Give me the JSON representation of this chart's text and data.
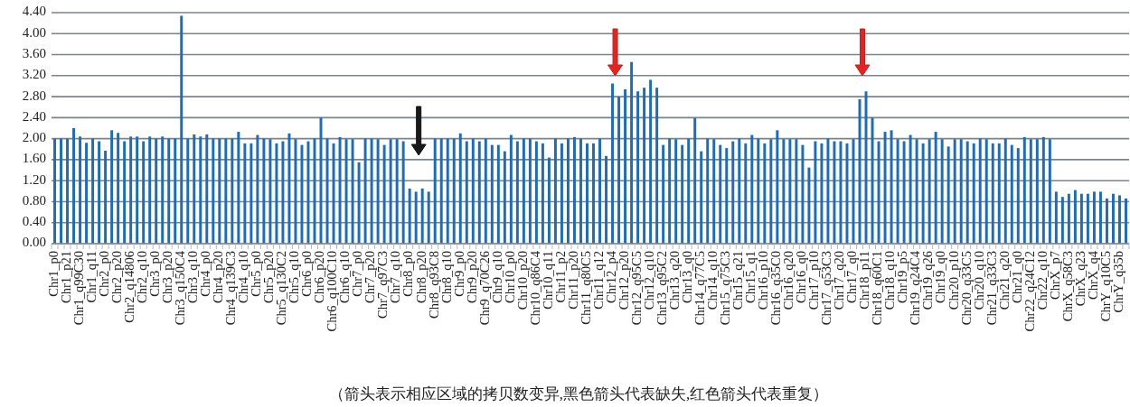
{
  "chart_data": {
    "type": "bar",
    "categories": [
      "Chr1_p0",
      null,
      "Chr1_p21",
      null,
      "Chr1_q99C30",
      null,
      "Chr1_q11",
      null,
      "Chr2_p0",
      null,
      "Chr2_p20",
      null,
      "Chr2_q14806",
      null,
      "Chr2_q10",
      null,
      "Chr3_p0",
      null,
      "Chr3_p20",
      null,
      "Chr3_q150C4",
      null,
      "Chr3_q10",
      null,
      "Chr4_p0",
      null,
      "Chr4_p20",
      null,
      "Chr4_q139C3",
      null,
      "Chr4_q10",
      null,
      "Chr5_p0",
      null,
      "Chr5_p20",
      null,
      "Chr5_q130C2",
      null,
      "Chr5_q10",
      null,
      "Chr6_p0",
      null,
      "Chr6_p20",
      null,
      "Chr6_q100C10",
      null,
      "Chr6_q10",
      null,
      "Chr7_p0",
      null,
      "Chr7_p20",
      null,
      "Chr7_q97C3",
      null,
      "Chr7_q10",
      null,
      "Chr8_p0",
      null,
      "Chr8_p20",
      null,
      "Chr8_q93C8",
      null,
      "Chr8_q10",
      null,
      "Chr9_p0",
      null,
      "Chr9_p20",
      null,
      "Chr9_q70C26",
      null,
      "Chr9_q10",
      null,
      "Chr10_p0",
      null,
      "Chr10_p20",
      null,
      "Chr10_q86C4",
      null,
      "Chr10_q11",
      null,
      "Chr11_p2",
      null,
      "Chr11_p20",
      null,
      "Chr11_q80C5",
      null,
      "Chr11_q12",
      null,
      "Chr12_p4",
      null,
      "Chr12_p20",
      null,
      "Chr12_q95C5",
      null,
      "Chr12_q10",
      null,
      "Chr13_q95C2",
      null,
      "Chr13_q20",
      null,
      "Chr13_q0",
      null,
      "Chr14_q77C5",
      null,
      "Chr14_q10",
      null,
      "Chr15_q75C3",
      null,
      "Chr15_q21",
      null,
      "Chr15_q1",
      null,
      "Chr16_p10",
      null,
      "Chr16_q35C0",
      null,
      "Chr16_q20",
      null,
      "Chr16_q0",
      null,
      "Chr17_p10",
      null,
      "Chr17_q53C3",
      null,
      "Chr17_q20",
      null,
      "Chr17_q0",
      null,
      "Chr18_p11",
      null,
      "Chr18_q60C1",
      null,
      "Chr18_q10",
      null,
      "Chr19_p5",
      null,
      "Chr19_q24C4",
      null,
      "Chr19_q26",
      null,
      "Chr19_q0",
      null,
      "Chr20_p10",
      null,
      "Chr20_q33C5",
      null,
      "Chr20_q10",
      null,
      "Chr21_q33C3",
      null,
      "Chr21_q20",
      null,
      "Chr21_q0",
      null,
      "Chr22_q24C12",
      null,
      "Chr22_q10",
      null,
      "ChrX_p7",
      null,
      "ChrX_q58C3",
      null,
      "ChrX_q23",
      null,
      "ChrX_q4",
      null,
      "ChrY_q10C5",
      null,
      "ChrY_q35b",
      null
    ],
    "values": [
      2.0,
      2.0,
      2.0,
      2.2,
      2.04,
      1.92,
      2.0,
      1.95,
      1.77,
      2.16,
      2.11,
      1.95,
      2.04,
      2.04,
      1.95,
      2.04,
      2.0,
      2.04,
      2.0,
      2.0,
      4.34,
      2.0,
      2.08,
      2.04,
      2.08,
      2.0,
      2.0,
      2.0,
      2.0,
      2.13,
      1.91,
      1.91,
      2.07,
      2.0,
      1.99,
      1.91,
      1.95,
      2.1,
      1.99,
      1.88,
      1.95,
      2.0,
      2.4,
      2.0,
      1.91,
      2.03,
      1.99,
      1.99,
      1.55,
      2.0,
      2.0,
      1.99,
      1.88,
      1.99,
      1.99,
      1.95,
      1.05,
      0.99,
      1.05,
      0.99,
      2.0,
      2.0,
      2.0,
      2.0,
      2.1,
      1.95,
      2.0,
      1.95,
      2.0,
      1.88,
      1.88,
      1.76,
      2.07,
      1.95,
      2.0,
      2.0,
      1.95,
      1.91,
      1.64,
      2.0,
      1.91,
      2.0,
      2.03,
      2.0,
      1.91,
      1.91,
      2.0,
      1.67,
      3.05,
      2.8,
      2.94,
      3.46,
      2.9,
      2.97,
      3.12,
      2.97,
      1.88,
      2.0,
      1.99,
      1.88,
      2.0,
      2.39,
      1.76,
      2.0,
      1.99,
      1.88,
      1.82,
      1.95,
      2.0,
      1.91,
      2.07,
      2.0,
      1.91,
      1.99,
      2.16,
      1.99,
      1.99,
      1.99,
      1.88,
      1.45,
      1.95,
      1.91,
      2.0,
      1.95,
      1.95,
      1.91,
      1.99,
      2.75,
      2.9,
      2.4,
      1.95,
      2.13,
      2.16,
      1.99,
      1.95,
      2.07,
      1.99,
      1.91,
      1.99,
      2.13,
      1.99,
      1.85,
      1.99,
      1.99,
      1.95,
      1.91,
      2.0,
      1.99,
      1.91,
      1.91,
      2.0,
      1.88,
      1.82,
      2.03,
      1.99,
      1.99,
      2.03,
      1.99,
      0.99,
      0.89,
      0.95,
      1.02,
      0.95,
      0.95,
      0.99,
      0.99,
      0.86,
      0.95,
      0.92,
      0.86
    ],
    "color": "#1b6cbf",
    "ylim": [
      0,
      4.4
    ],
    "yticks": [
      {
        "value": 0,
        "label": "0.00"
      },
      {
        "value": 0.4,
        "label": "0.40"
      },
      {
        "value": 0.8,
        "label": "0.80"
      },
      {
        "value": 1.2,
        "label": "1.20"
      },
      {
        "value": 1.6,
        "label": "1.60"
      },
      {
        "value": 2.0,
        "label": "2.00"
      },
      {
        "value": 2.4,
        "label": "2.40"
      },
      {
        "value": 2.8,
        "label": "2.80"
      },
      {
        "value": 3.2,
        "label": "3.20"
      },
      {
        "value": 3.6,
        "label": "3.60"
      },
      {
        "value": 4.0,
        "label": "4.00"
      },
      {
        "value": 4.4,
        "label": "4.40"
      }
    ],
    "grid": "y",
    "annotations": [
      "（箭头表示相应区域的拷贝数变异,黑色箭头代表缺失,红色箭头代表重复）"
    ]
  }
}
